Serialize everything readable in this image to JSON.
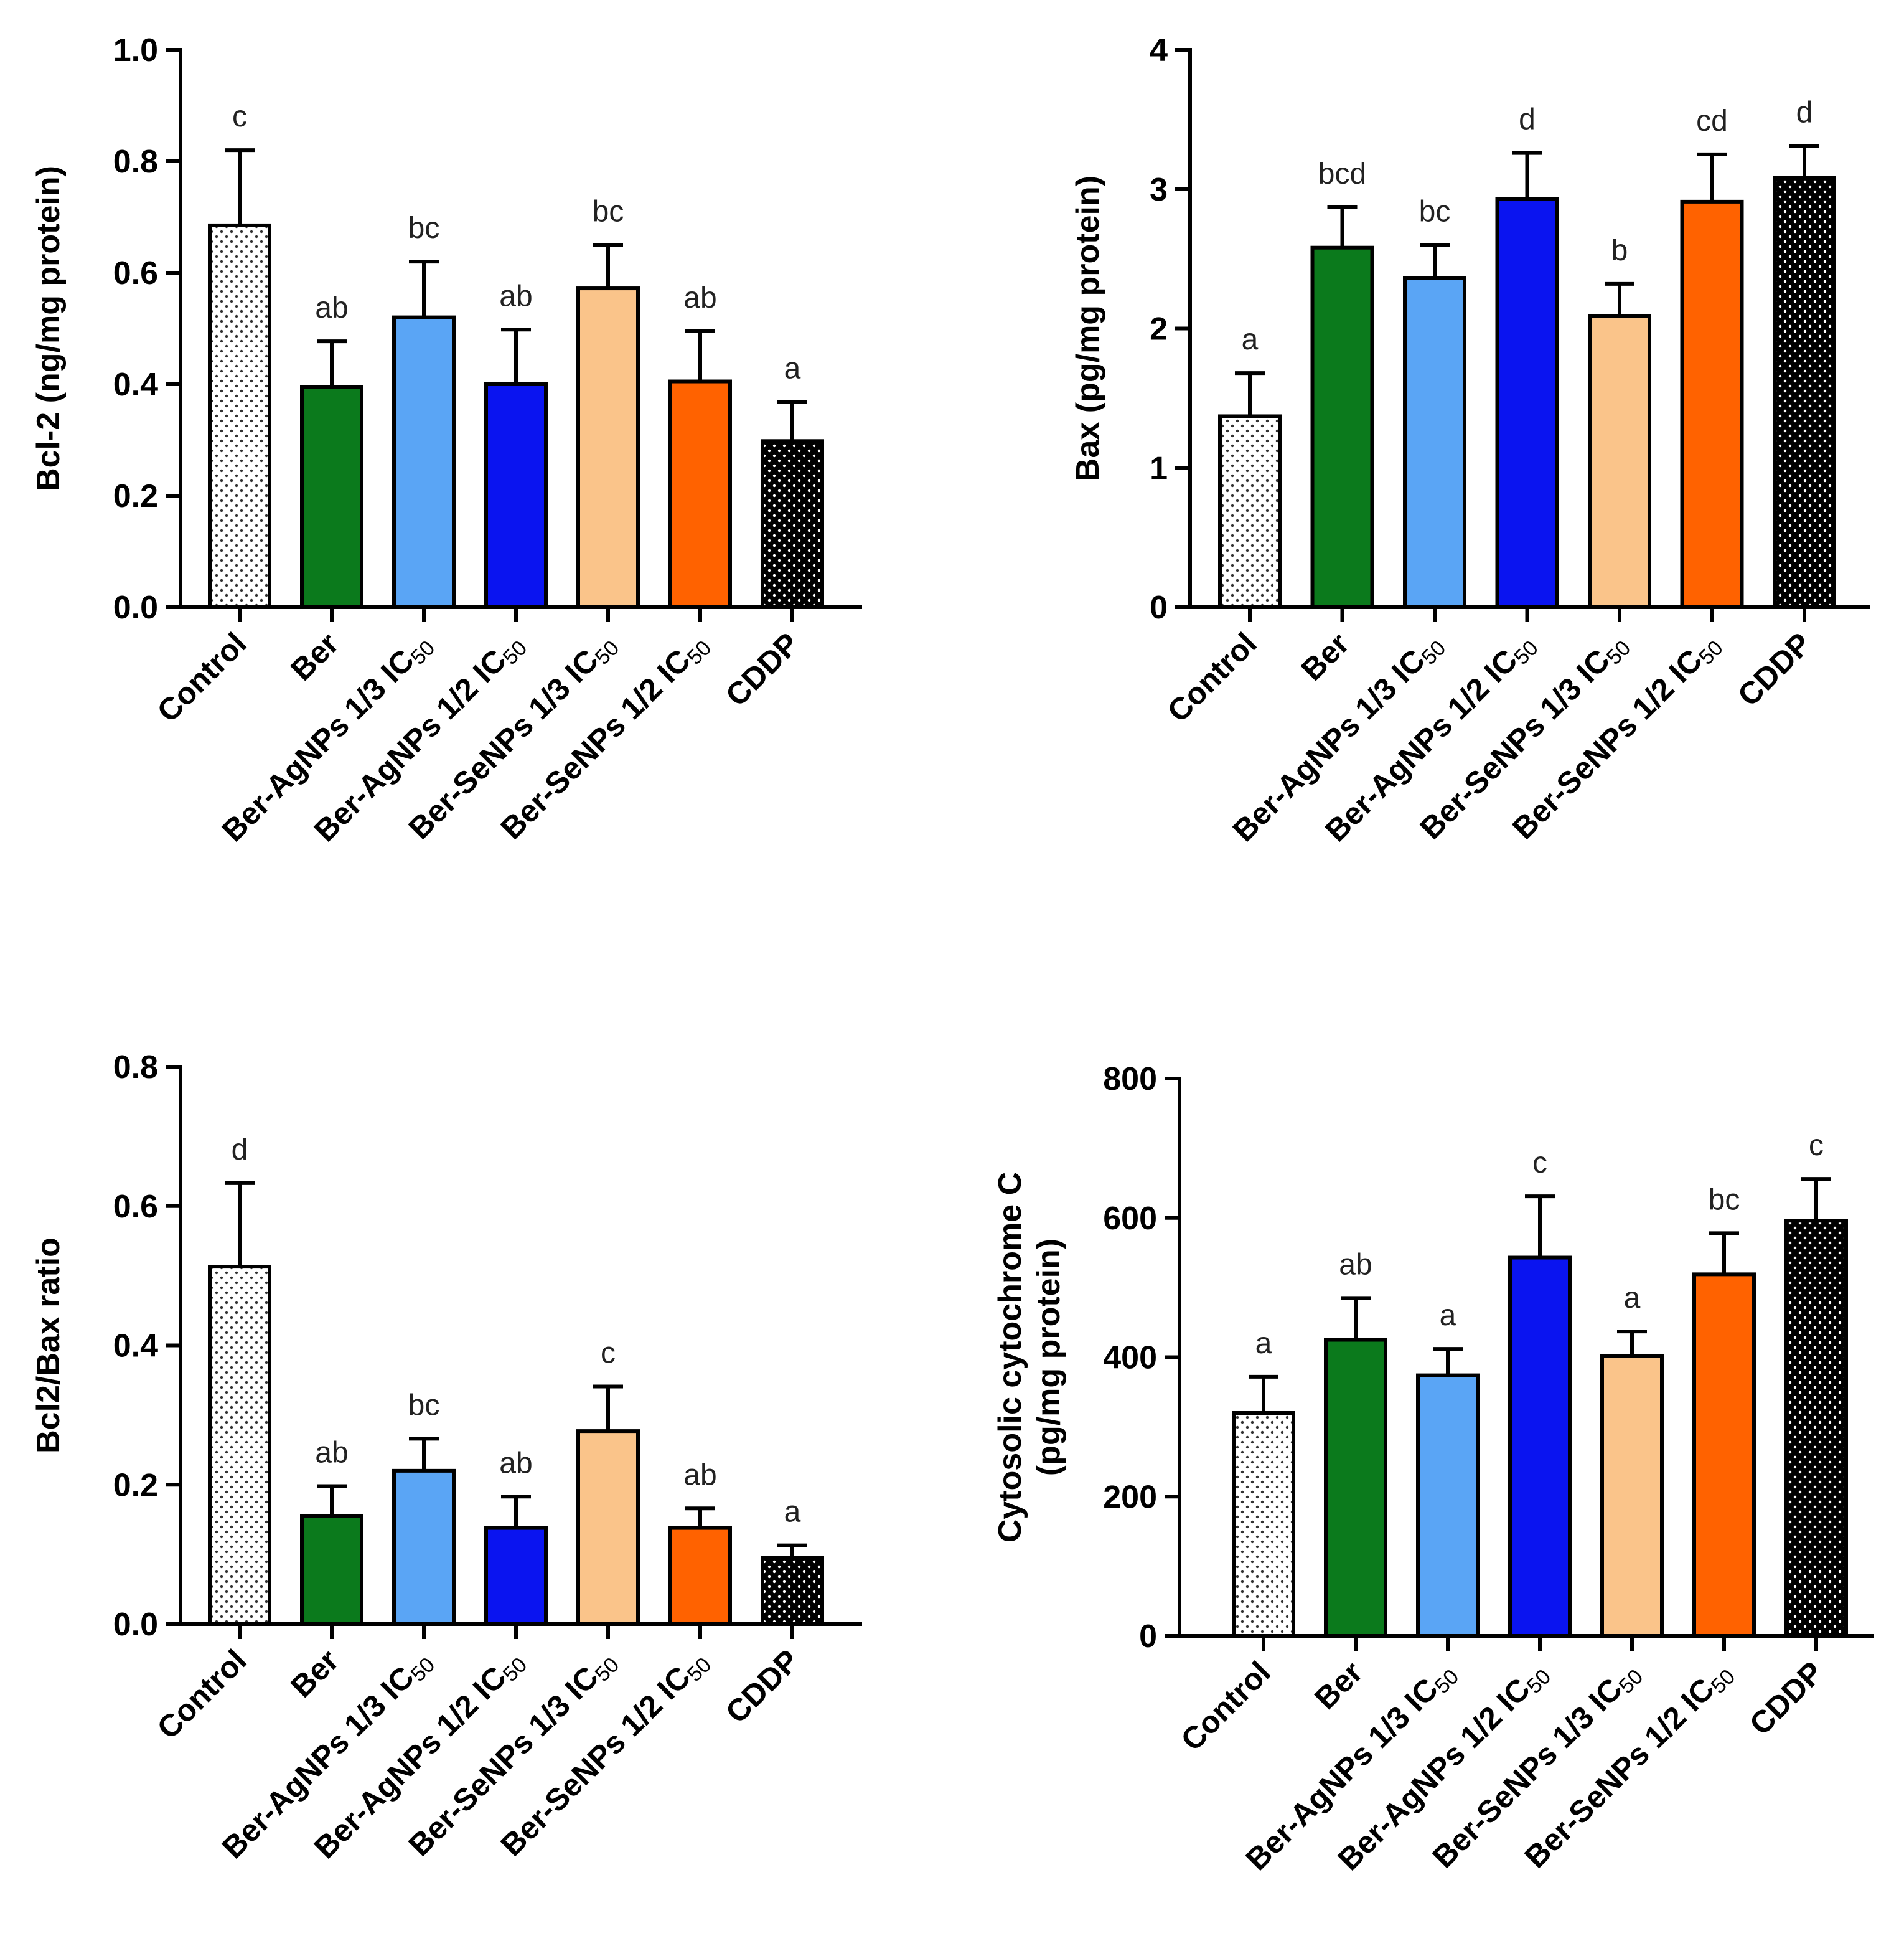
{
  "categories": [
    {
      "main": "Control",
      "sub": ""
    },
    {
      "main": "Ber",
      "sub": ""
    },
    {
      "main": "Ber-AgNPs 1/3 IC",
      "sub": "50"
    },
    {
      "main": "Ber-AgNPs 1/2 IC",
      "sub": "50"
    },
    {
      "main": "Ber-SeNPs 1/3 IC",
      "sub": "50"
    },
    {
      "main": "Ber-SeNPs 1/2 IC",
      "sub": "50"
    },
    {
      "main": "CDDP",
      "sub": ""
    }
  ],
  "colors": {
    "Control": "#ffffff",
    "Ber": "#0b7a1c",
    "Ber-AgNPs 1/3 IC50": "#5aa5f5",
    "Ber-AgNPs 1/2 IC50": "#0a14f0",
    "Ber-SeNPs 1/3 IC50": "#fac48a",
    "Ber-SeNPs 1/2 IC50": "#ff6200",
    "CDDP": "#000000"
  },
  "chart_data": [
    {
      "type": "bar",
      "ylabel": [
        "Bcl-2 (ng/mg protein)"
      ],
      "ylim": [
        0,
        1.0
      ],
      "yticks": [
        "0.0",
        "0.2",
        "0.4",
        "0.6",
        "0.8",
        "1.0"
      ],
      "values": [
        0.685,
        0.395,
        0.52,
        0.4,
        0.572,
        0.405,
        0.298
      ],
      "errors": [
        0.135,
        0.082,
        0.1,
        0.098,
        0.078,
        0.09,
        0.07
      ],
      "letters": [
        "c",
        "ab",
        "bc",
        "ab",
        "bc",
        "ab",
        "a"
      ]
    },
    {
      "type": "bar",
      "ylabel": [
        "Bax (pg/mg protein)"
      ],
      "ylim": [
        0,
        4
      ],
      "yticks": [
        "0",
        "1",
        "2",
        "3",
        "4"
      ],
      "values": [
        1.37,
        2.58,
        2.36,
        2.93,
        2.09,
        2.91,
        3.08
      ],
      "errors": [
        0.31,
        0.29,
        0.24,
        0.33,
        0.23,
        0.34,
        0.23
      ],
      "letters": [
        "a",
        "bcd",
        "bc",
        "d",
        "b",
        "cd",
        "d"
      ]
    },
    {
      "type": "bar",
      "ylabel": [
        "Bcl2/Bax ratio"
      ],
      "ylim": [
        0,
        0.8
      ],
      "yticks": [
        "0.0",
        "0.2",
        "0.4",
        "0.6",
        "0.8"
      ],
      "values": [
        0.513,
        0.155,
        0.22,
        0.138,
        0.277,
        0.138,
        0.095
      ],
      "errors": [
        0.12,
        0.043,
        0.046,
        0.045,
        0.064,
        0.028,
        0.018
      ],
      "letters": [
        "d",
        "ab",
        "bc",
        "ab",
        "c",
        "ab",
        "a"
      ]
    },
    {
      "type": "bar",
      "ylabel": [
        "Cytosolic cytochrome C",
        "(pg/mg protein)"
      ],
      "ylim": [
        0,
        800
      ],
      "yticks": [
        "0",
        "200",
        "400",
        "600",
        "800"
      ],
      "values": [
        320,
        425,
        374,
        543,
        402,
        519,
        596
      ],
      "errors": [
        52,
        60,
        38,
        88,
        35,
        59,
        60
      ],
      "letters": [
        "a",
        "ab",
        "a",
        "c",
        "a",
        "bc",
        "c"
      ]
    }
  ]
}
